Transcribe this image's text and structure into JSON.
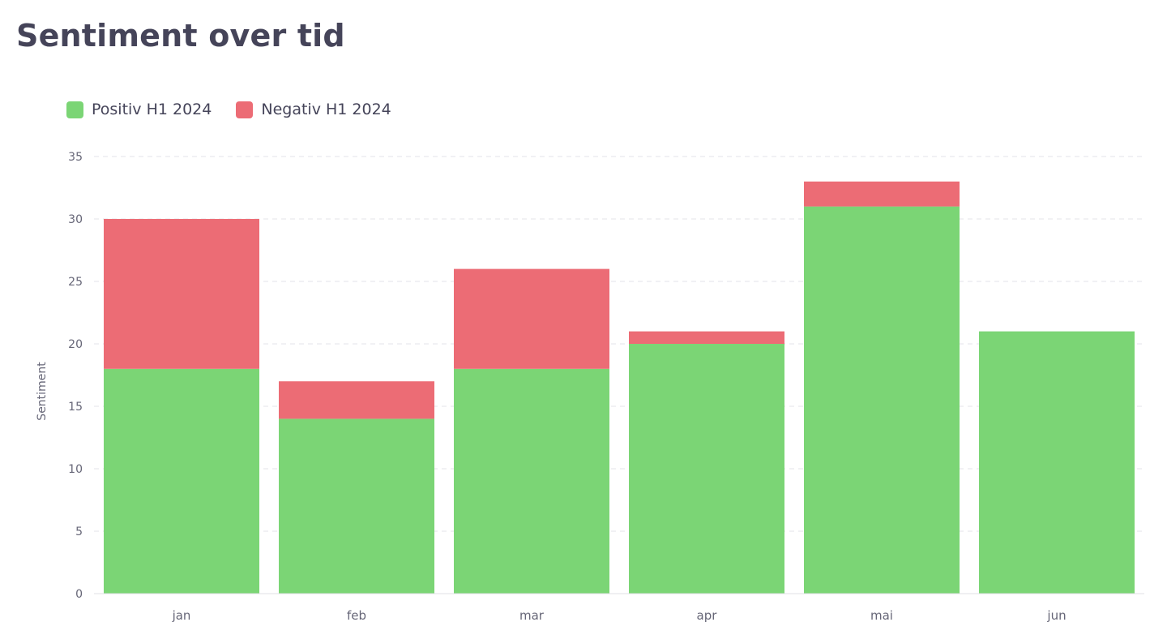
{
  "title": "Sentiment over tid",
  "legend": {
    "items": [
      {
        "label": "Positiv H1 2024",
        "color": "#7bd575"
      },
      {
        "label": "Negativ H1 2024",
        "color": "#ec6c75"
      }
    ]
  },
  "chart_data": {
    "type": "bar",
    "stacked": true,
    "title": "Sentiment over tid",
    "xlabel": "",
    "ylabel": "Sentiment",
    "categories": [
      "jan",
      "feb",
      "mar",
      "apr",
      "mai",
      "jun"
    ],
    "series": [
      {
        "name": "Positiv H1 2024",
        "color": "#7bd575",
        "values": [
          18,
          14,
          18,
          20,
          31,
          21
        ]
      },
      {
        "name": "Negativ H1 2024",
        "color": "#ec6c75",
        "values": [
          12,
          3,
          8,
          1,
          2,
          0
        ]
      }
    ],
    "ylim": [
      0,
      35
    ],
    "yticks": [
      0,
      5,
      10,
      15,
      20,
      25,
      30,
      35
    ],
    "grid": true,
    "legend_position": "top-left"
  }
}
